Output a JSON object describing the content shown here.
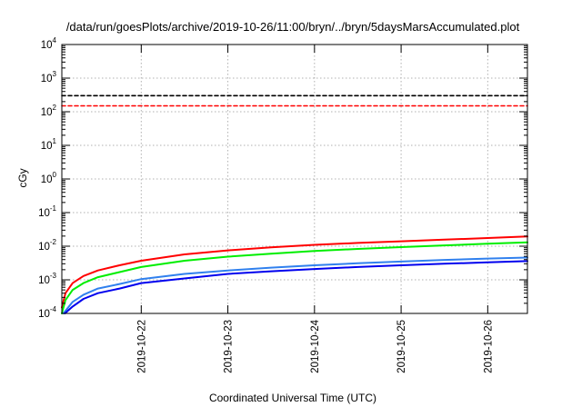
{
  "chart_data": {
    "type": "line",
    "title": "/data/run/goesPlots/archive/2019-10-26/11:00/bryn/../bryn/5daysMarsAccumulated.plot",
    "xlabel": "Coordinated Universal Time (UTC)",
    "ylabel": "cGy",
    "yscale": "log",
    "ylim": [
      0.0001,
      10000
    ],
    "xlim": [
      "2019-10-21T02:00",
      "2019-10-26T11:00"
    ],
    "grid": true,
    "x_ticks": [
      "2019-10-22",
      "2019-10-23",
      "2019-10-24",
      "2019-10-25",
      "2019-10-26"
    ],
    "y_ticks": [
      {
        "value": 0.0001,
        "base": "10",
        "exp": "-4"
      },
      {
        "value": 0.001,
        "base": "10",
        "exp": "-3"
      },
      {
        "value": 0.01,
        "base": "10",
        "exp": "-2"
      },
      {
        "value": 0.1,
        "base": "10",
        "exp": "-1"
      },
      {
        "value": 1,
        "base": "10",
        "exp": "0"
      },
      {
        "value": 10,
        "base": "10",
        "exp": "1"
      },
      {
        "value": 100,
        "base": "10",
        "exp": "2"
      },
      {
        "value": 1000,
        "base": "10",
        "exp": "3"
      },
      {
        "value": 10000,
        "base": "10",
        "exp": "4"
      }
    ],
    "series": [
      {
        "color": "#000000",
        "style": "dashed",
        "x": [
          "2019-10-21T02:00",
          "2019-10-26T11:00"
        ],
        "y": [
          300,
          300
        ]
      },
      {
        "color": "#ff0000",
        "style": "dashed",
        "x": [
          "2019-10-21T02:00",
          "2019-10-26T11:00"
        ],
        "y": [
          150,
          150
        ]
      },
      {
        "color": "#ff0000",
        "style": "solid",
        "x": [
          "2019-10-21T02:00",
          "2019-10-21T03:00",
          "2019-10-21T05:00",
          "2019-10-21T08:00",
          "2019-10-21T12:00",
          "2019-10-21T18:00",
          "2019-10-22T00:00",
          "2019-10-22T12:00",
          "2019-10-23T00:00",
          "2019-10-23T12:00",
          "2019-10-24T00:00",
          "2019-10-24T12:00",
          "2019-10-25T00:00",
          "2019-10-25T12:00",
          "2019-10-26T00:00",
          "2019-10-26T11:00"
        ],
        "y": [
          0.00015,
          0.0004,
          0.0008,
          0.0013,
          0.0019,
          0.0027,
          0.0037,
          0.0057,
          0.0075,
          0.0092,
          0.011,
          0.0125,
          0.014,
          0.0157,
          0.0175,
          0.0195
        ]
      },
      {
        "color": "#00ee00",
        "style": "solid",
        "x": [
          "2019-10-21T02:00",
          "2019-10-21T03:00",
          "2019-10-21T05:00",
          "2019-10-21T08:00",
          "2019-10-21T12:00",
          "2019-10-21T18:00",
          "2019-10-22T00:00",
          "2019-10-22T12:00",
          "2019-10-23T00:00",
          "2019-10-23T12:00",
          "2019-10-24T00:00",
          "2019-10-24T12:00",
          "2019-10-25T00:00",
          "2019-10-25T12:00",
          "2019-10-26T00:00",
          "2019-10-26T11:00"
        ],
        "y": [
          0.0001,
          0.00025,
          0.0005,
          0.0008,
          0.0012,
          0.0017,
          0.0024,
          0.0037,
          0.0049,
          0.006,
          0.0072,
          0.0083,
          0.0094,
          0.0106,
          0.0118,
          0.013
        ]
      },
      {
        "color": "#3080ee",
        "style": "solid",
        "x": [
          "2019-10-21T02:25",
          "2019-10-21T05:00",
          "2019-10-21T08:00",
          "2019-10-21T12:00",
          "2019-10-21T18:00",
          "2019-10-22T00:00",
          "2019-10-22T12:00",
          "2019-10-23T00:00",
          "2019-10-23T12:00",
          "2019-10-24T00:00",
          "2019-10-24T12:00",
          "2019-10-25T00:00",
          "2019-10-25T12:00",
          "2019-10-26T00:00",
          "2019-10-26T11:00"
        ],
        "y": [
          0.0001,
          0.00022,
          0.00036,
          0.00055,
          0.00075,
          0.00105,
          0.0015,
          0.0019,
          0.0023,
          0.0027,
          0.0031,
          0.0035,
          0.0039,
          0.0043,
          0.0046
        ]
      },
      {
        "color": "#0000ee",
        "style": "solid",
        "x": [
          "2019-10-21T02:50",
          "2019-10-21T05:00",
          "2019-10-21T08:00",
          "2019-10-21T12:00",
          "2019-10-21T18:00",
          "2019-10-22T00:00",
          "2019-10-22T12:00",
          "2019-10-23T00:00",
          "2019-10-23T12:00",
          "2019-10-24T00:00",
          "2019-10-24T12:00",
          "2019-10-25T00:00",
          "2019-10-25T12:00",
          "2019-10-26T00:00",
          "2019-10-26T11:00"
        ],
        "y": [
          0.0001,
          0.00016,
          0.00027,
          0.0004,
          0.00055,
          0.0008,
          0.0011,
          0.0015,
          0.0018,
          0.0021,
          0.0024,
          0.0027,
          0.003,
          0.0033,
          0.0036
        ]
      }
    ]
  }
}
